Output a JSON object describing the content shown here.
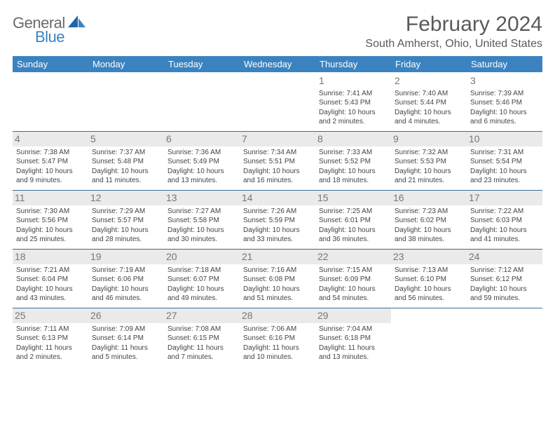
{
  "logo": {
    "textDark": "General",
    "textBlue": "Blue"
  },
  "title": "February 2024",
  "location": "South Amherst, Ohio, United States",
  "colors": {
    "header_bg": "#3b83c0",
    "header_text": "#ffffff",
    "row_border": "#3b6c94",
    "shade_bg": "#eaeaea",
    "text": "#444444",
    "title_text": "#5a5a5a"
  },
  "week_header": [
    "Sunday",
    "Monday",
    "Tuesday",
    "Wednesday",
    "Thursday",
    "Friday",
    "Saturday"
  ],
  "grid": [
    [
      null,
      null,
      null,
      null,
      {
        "n": "1",
        "sr": "7:41 AM",
        "ss": "5:43 PM",
        "dh": 10,
        "dm": 2
      },
      {
        "n": "2",
        "sr": "7:40 AM",
        "ss": "5:44 PM",
        "dh": 10,
        "dm": 4
      },
      {
        "n": "3",
        "sr": "7:39 AM",
        "ss": "5:46 PM",
        "dh": 10,
        "dm": 6
      }
    ],
    [
      {
        "n": "4",
        "sr": "7:38 AM",
        "ss": "5:47 PM",
        "dh": 10,
        "dm": 9
      },
      {
        "n": "5",
        "sr": "7:37 AM",
        "ss": "5:48 PM",
        "dh": 10,
        "dm": 11
      },
      {
        "n": "6",
        "sr": "7:36 AM",
        "ss": "5:49 PM",
        "dh": 10,
        "dm": 13
      },
      {
        "n": "7",
        "sr": "7:34 AM",
        "ss": "5:51 PM",
        "dh": 10,
        "dm": 16
      },
      {
        "n": "8",
        "sr": "7:33 AM",
        "ss": "5:52 PM",
        "dh": 10,
        "dm": 18
      },
      {
        "n": "9",
        "sr": "7:32 AM",
        "ss": "5:53 PM",
        "dh": 10,
        "dm": 21
      },
      {
        "n": "10",
        "sr": "7:31 AM",
        "ss": "5:54 PM",
        "dh": 10,
        "dm": 23
      }
    ],
    [
      {
        "n": "11",
        "sr": "7:30 AM",
        "ss": "5:56 PM",
        "dh": 10,
        "dm": 25
      },
      {
        "n": "12",
        "sr": "7:29 AM",
        "ss": "5:57 PM",
        "dh": 10,
        "dm": 28
      },
      {
        "n": "13",
        "sr": "7:27 AM",
        "ss": "5:58 PM",
        "dh": 10,
        "dm": 30
      },
      {
        "n": "14",
        "sr": "7:26 AM",
        "ss": "5:59 PM",
        "dh": 10,
        "dm": 33
      },
      {
        "n": "15",
        "sr": "7:25 AM",
        "ss": "6:01 PM",
        "dh": 10,
        "dm": 36
      },
      {
        "n": "16",
        "sr": "7:23 AM",
        "ss": "6:02 PM",
        "dh": 10,
        "dm": 38
      },
      {
        "n": "17",
        "sr": "7:22 AM",
        "ss": "6:03 PM",
        "dh": 10,
        "dm": 41
      }
    ],
    [
      {
        "n": "18",
        "sr": "7:21 AM",
        "ss": "6:04 PM",
        "dh": 10,
        "dm": 43
      },
      {
        "n": "19",
        "sr": "7:19 AM",
        "ss": "6:06 PM",
        "dh": 10,
        "dm": 46
      },
      {
        "n": "20",
        "sr": "7:18 AM",
        "ss": "6:07 PM",
        "dh": 10,
        "dm": 49
      },
      {
        "n": "21",
        "sr": "7:16 AM",
        "ss": "6:08 PM",
        "dh": 10,
        "dm": 51
      },
      {
        "n": "22",
        "sr": "7:15 AM",
        "ss": "6:09 PM",
        "dh": 10,
        "dm": 54
      },
      {
        "n": "23",
        "sr": "7:13 AM",
        "ss": "6:10 PM",
        "dh": 10,
        "dm": 56
      },
      {
        "n": "24",
        "sr": "7:12 AM",
        "ss": "6:12 PM",
        "dh": 10,
        "dm": 59
      }
    ],
    [
      {
        "n": "25",
        "sr": "7:11 AM",
        "ss": "6:13 PM",
        "dh": 11,
        "dm": 2
      },
      {
        "n": "26",
        "sr": "7:09 AM",
        "ss": "6:14 PM",
        "dh": 11,
        "dm": 5
      },
      {
        "n": "27",
        "sr": "7:08 AM",
        "ss": "6:15 PM",
        "dh": 11,
        "dm": 7
      },
      {
        "n": "28",
        "sr": "7:06 AM",
        "ss": "6:16 PM",
        "dh": 11,
        "dm": 10
      },
      {
        "n": "29",
        "sr": "7:04 AM",
        "ss": "6:18 PM",
        "dh": 11,
        "dm": 13
      },
      null,
      null
    ]
  ],
  "labels": {
    "sunrise": "Sunrise:",
    "sunset": "Sunset:",
    "daylight": "Daylight:",
    "hours": "hours",
    "and": "and",
    "minutes": "minutes."
  }
}
